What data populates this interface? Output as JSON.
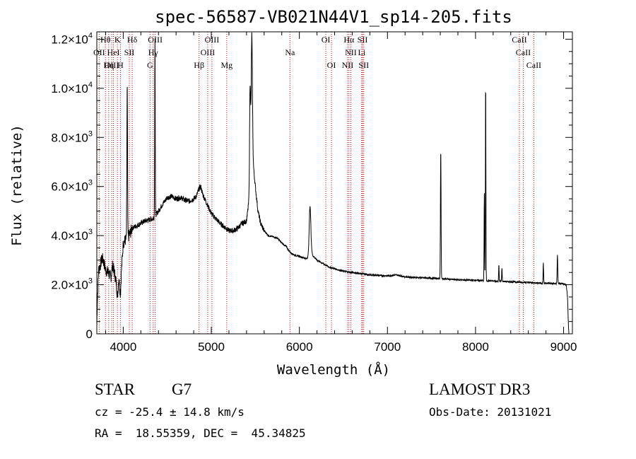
{
  "chart_data": {
    "type": "line",
    "title": "spec-56587-VB021N44V1_sp14-205.fits",
    "xlabel": "Wavelength (Å)",
    "ylabel": "Flux (relative)",
    "xlim": [
      3700,
      9100
    ],
    "ylim": [
      0,
      12300
    ],
    "xticks": [
      4000,
      5000,
      6000,
      7000,
      8000,
      9000
    ],
    "yticks": [
      {
        "value": 0,
        "mant": "0",
        "exp": ""
      },
      {
        "value": 2000,
        "mant": "2.0×10",
        "exp": "3"
      },
      {
        "value": 4000,
        "mant": "4.0×10",
        "exp": "3"
      },
      {
        "value": 6000,
        "mant": "6.0×10",
        "exp": "3"
      },
      {
        "value": 8000,
        "mant": "8.0×10",
        "exp": "3"
      },
      {
        "value": 10000,
        "mant": "1.0×10",
        "exp": "4"
      },
      {
        "value": 12000,
        "mant": "1.2×10",
        "exp": "4"
      }
    ],
    "spectrum_continuum": [
      [
        3700,
        300
      ],
      [
        3705,
        1200
      ],
      [
        3720,
        2600
      ],
      [
        3740,
        2800
      ],
      [
        3760,
        3100
      ],
      [
        3780,
        2900
      ],
      [
        3800,
        2600
      ],
      [
        3830,
        2500
      ],
      [
        3860,
        2300
      ],
      [
        3880,
        2800
      ],
      [
        3900,
        2500
      ],
      [
        3920,
        2100
      ],
      [
        3935,
        1500
      ],
      [
        3950,
        2300
      ],
      [
        3968,
        1600
      ],
      [
        3980,
        2600
      ],
      [
        4000,
        3700
      ],
      [
        4020,
        3800
      ],
      [
        4050,
        3900
      ],
      [
        4080,
        4100
      ],
      [
        4100,
        4300
      ],
      [
        4150,
        4400
      ],
      [
        4200,
        4500
      ],
      [
        4250,
        4600
      ],
      [
        4300,
        4650
      ],
      [
        4340,
        4700
      ],
      [
        4400,
        5000
      ],
      [
        4450,
        5300
      ],
      [
        4500,
        5550
      ],
      [
        4550,
        5600
      ],
      [
        4600,
        5500
      ],
      [
        4650,
        5550
      ],
      [
        4700,
        5450
      ],
      [
        4750,
        5400
      ],
      [
        4800,
        5500
      ],
      [
        4830,
        5600
      ],
      [
        4860,
        5900
      ],
      [
        4880,
        6000
      ],
      [
        4900,
        5700
      ],
      [
        4950,
        5300
      ],
      [
        5000,
        4900
      ],
      [
        5050,
        4700
      ],
      [
        5100,
        4500
      ],
      [
        5150,
        4350
      ],
      [
        5200,
        4200
      ],
      [
        5250,
        4200
      ],
      [
        5300,
        4300
      ],
      [
        5350,
        4500
      ],
      [
        5400,
        4600
      ],
      [
        5430,
        5500
      ],
      [
        5460,
        7500
      ],
      [
        5500,
        6000
      ],
      [
        5530,
        5000
      ],
      [
        5560,
        4500
      ],
      [
        5600,
        4200
      ],
      [
        5650,
        4000
      ],
      [
        5700,
        3950
      ],
      [
        5750,
        3900
      ],
      [
        5800,
        3700
      ],
      [
        5850,
        3550
      ],
      [
        5900,
        3300
      ],
      [
        5950,
        3200
      ],
      [
        6000,
        3150
      ],
      [
        6050,
        3100
      ],
      [
        6080,
        3050
      ],
      [
        6100,
        3150
      ],
      [
        6130,
        3600
      ],
      [
        6150,
        3200
      ],
      [
        6200,
        3000
      ],
      [
        6250,
        2900
      ],
      [
        6300,
        2800
      ],
      [
        6350,
        2700
      ],
      [
        6400,
        2650
      ],
      [
        6500,
        2550
      ],
      [
        6600,
        2500
      ],
      [
        6700,
        2450
      ],
      [
        6800,
        2400
      ],
      [
        6900,
        2380
      ],
      [
        7000,
        2360
      ],
      [
        7100,
        2400
      ],
      [
        7200,
        2320
      ],
      [
        7400,
        2280
      ],
      [
        7600,
        2250
      ],
      [
        7800,
        2200
      ],
      [
        8000,
        2180
      ],
      [
        8200,
        2150
      ],
      [
        8400,
        2120
      ],
      [
        8600,
        2090
      ],
      [
        8800,
        2060
      ],
      [
        9000,
        2030
      ],
      [
        9030,
        2000
      ],
      [
        9045,
        1500
      ],
      [
        9055,
        300
      ],
      [
        9060,
        0
      ]
    ],
    "emission_peaks": [
      [
        4045,
        10200,
        5
      ],
      [
        4360,
        12100,
        4
      ],
      [
        5460,
        12200,
        10
      ],
      [
        5440,
        10100,
        8
      ],
      [
        6120,
        5200,
        12
      ],
      [
        7605,
        7500,
        5
      ],
      [
        8115,
        10300,
        4
      ],
      [
        8100,
        5700,
        4
      ],
      [
        8265,
        2800,
        4
      ],
      [
        8300,
        2700,
        4
      ],
      [
        8770,
        2900,
        4
      ],
      [
        8930,
        3200,
        5
      ]
    ],
    "line_markers": [
      {
        "name": "Hθ",
        "wavelength": 3798,
        "row": 0
      },
      {
        "name": "K",
        "wavelength": 3934,
        "row": 0
      },
      {
        "name": "Hδ",
        "wavelength": 4102,
        "row": 0
      },
      {
        "name": "OIII",
        "wavelength": 4363,
        "row": 0
      },
      {
        "name": "OIII",
        "wavelength": 5007,
        "row": 0
      },
      {
        "name": "OI",
        "wavelength": 6300,
        "row": 0
      },
      {
        "name": "Hα",
        "wavelength": 6563,
        "row": 0
      },
      {
        "name": "SII",
        "wavelength": 6717,
        "row": 0
      },
      {
        "name": "CaII",
        "wavelength": 8498,
        "row": 0
      },
      {
        "name": "OII",
        "wavelength": 3727,
        "row": 1
      },
      {
        "name": "HeI",
        "wavelength": 3889,
        "row": 1
      },
      {
        "name": "SII",
        "wavelength": 4069,
        "row": 1
      },
      {
        "name": "Hγ",
        "wavelength": 4340,
        "row": 1
      },
      {
        "name": "OIII",
        "wavelength": 4959,
        "row": 1
      },
      {
        "name": "Na",
        "wavelength": 5893,
        "row": 1
      },
      {
        "name": "NII",
        "wavelength": 6584,
        "row": 1
      },
      {
        "name": "Li",
        "wavelength": 6708,
        "row": 1
      },
      {
        "name": "CaII",
        "wavelength": 8542,
        "row": 1
      },
      {
        "name": "OIII",
        "wavelength": 3869,
        "row": 2
      },
      {
        "name": "Hη",
        "wavelength": 3835,
        "row": 2
      },
      {
        "name": "H",
        "wavelength": 3968,
        "row": 2
      },
      {
        "name": "G",
        "wavelength": 4304,
        "row": 2
      },
      {
        "name": "Hβ",
        "wavelength": 4861,
        "row": 2
      },
      {
        "name": "Mg",
        "wavelength": 5175,
        "row": 2
      },
      {
        "name": "OI",
        "wavelength": 6364,
        "row": 2
      },
      {
        "name": "NII",
        "wavelength": 6548,
        "row": 2
      },
      {
        "name": "SII",
        "wavelength": 6731,
        "row": 2
      },
      {
        "name": "CaII",
        "wavelength": 8662,
        "row": 2
      }
    ]
  },
  "info": {
    "object_class": "STAR",
    "subclass": "G7",
    "survey": "LAMOST DR3",
    "redshift": "cz = -25.4 ± 14.8 km/s",
    "obs_date": "Obs-Date: 20131021",
    "coords": "RA =  18.55359, DEC =  45.34825"
  },
  "colors": {
    "marker": "#cc0000",
    "spectrum": "#000000"
  }
}
